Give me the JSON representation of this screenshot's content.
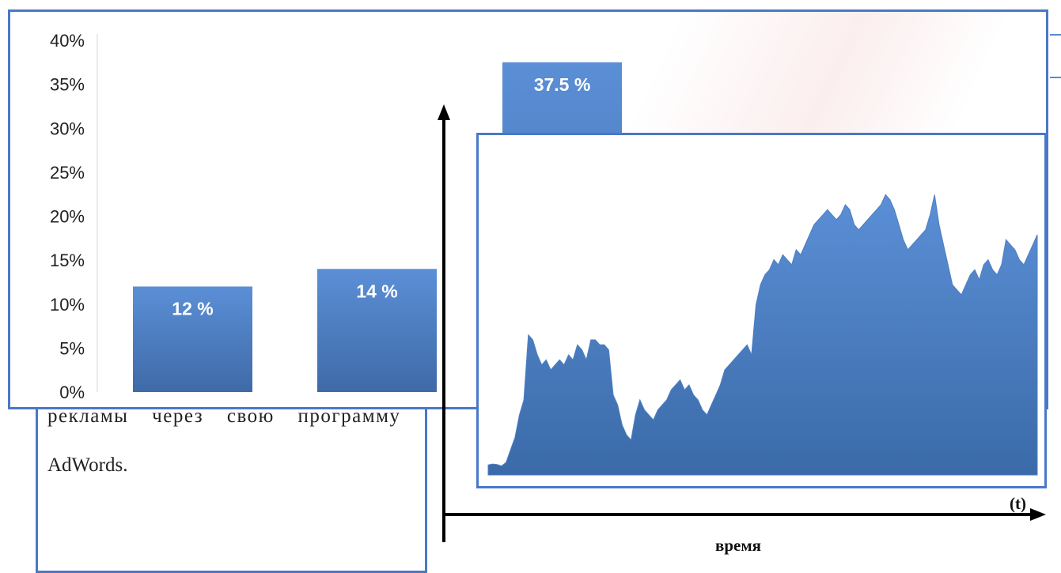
{
  "chart_data": [
    {
      "type": "bar",
      "categories": [
        "",
        "",
        ""
      ],
      "values": [
        12,
        14,
        37.5
      ],
      "data_labels": [
        "12 %",
        "14 %",
        "37.5 %"
      ],
      "y_ticks": [
        "0%",
        "5%",
        "10%",
        "15%",
        "20%",
        "25%",
        "30%",
        "35%",
        "40%"
      ],
      "ylim": [
        0,
        40
      ],
      "colors": {
        "bar_top": "#5b8fd6",
        "bar_bottom": "#3f6aa8",
        "frame": "#4a78c8"
      }
    },
    {
      "type": "area",
      "xlabel": "время",
      "x_unit": "(t)",
      "values": [
        2,
        2.2,
        2.1,
        1.8,
        2.5,
        5,
        7.5,
        12,
        15,
        28,
        27,
        24,
        22,
        23,
        21,
        22,
        23,
        22,
        24,
        23,
        26,
        25,
        23,
        27,
        27,
        26,
        26,
        25,
        16,
        14,
        10,
        8,
        7,
        12,
        15,
        13,
        12,
        11,
        13,
        14,
        15,
        17,
        18,
        19,
        17,
        18,
        16,
        15,
        13,
        12,
        14,
        16,
        18,
        21,
        22,
        23,
        24,
        25,
        26,
        24,
        34,
        38,
        40,
        41,
        43,
        42,
        44,
        43,
        42,
        45,
        44,
        46,
        48,
        50,
        51,
        52,
        53,
        52,
        51,
        52,
        54,
        53,
        50,
        49,
        50,
        51,
        52,
        53,
        54,
        56,
        55,
        53,
        50,
        47,
        45,
        46,
        47,
        48,
        49,
        52,
        56,
        50,
        46,
        42,
        38,
        37,
        36,
        38,
        40,
        41,
        39,
        42,
        43,
        41,
        40,
        42,
        47,
        46,
        45,
        43,
        42,
        44,
        46,
        48
      ],
      "ylim": [
        0,
        60
      ],
      "colors": {
        "fill_top": "#5b8fd6",
        "fill_bottom": "#3a6aa8",
        "frame": "#4a78c8"
      }
    }
  ],
  "document": {
    "line1": "рекламы через свою программу",
    "line2": "AdWords."
  }
}
